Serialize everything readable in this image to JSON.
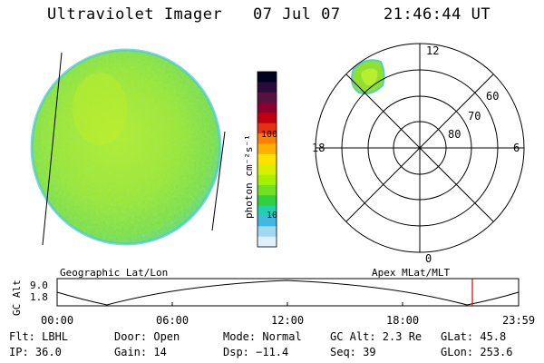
{
  "header": {
    "title": "Ultraviolet Imager",
    "date": "07 Jul 07",
    "time": "21:46:44 UT"
  },
  "colorbar": {
    "unit_label": "photon cm⁻²s⁻¹",
    "ticks": [
      "100",
      "10"
    ],
    "colors": [
      "#000020",
      "#2a0a3a",
      "#5a1040",
      "#8c0030",
      "#c00010",
      "#e83010",
      "#ff8000",
      "#ffb000",
      "#ffe000",
      "#d8f000",
      "#a8f000",
      "#70e020",
      "#30d040",
      "#20d0b0",
      "#40b8e0",
      "#a0d8f0",
      "#e0f0f8"
    ]
  },
  "polar": {
    "lat_labels": [
      "60",
      "70",
      "80"
    ],
    "mlt_labels": {
      "top": "12",
      "bottom": "0",
      "left": "18",
      "right": "6"
    }
  },
  "map_labels": {
    "left": "Geographic Lat/Lon",
    "right": "Apex MLat/MLT"
  },
  "orbit": {
    "ylabel": "GC Alt",
    "ytick_top": "9.0",
    "ytick_bottom": "1.8",
    "time_ticks": [
      "00:00",
      "06:00",
      "12:00",
      "18:00",
      "23:59"
    ],
    "current_marker_color": "#e00000"
  },
  "info": {
    "row1": [
      "Flt: LBHL",
      "Door: Open",
      "Mode: Normal",
      "GC Alt: 2.3 Re",
      "GLat: 45.8"
    ],
    "row2": [
      "IP: 36.0",
      "Gain: 14",
      "Dsp: −11.4",
      "Seq: 39",
      "GLon: 253.6"
    ]
  }
}
